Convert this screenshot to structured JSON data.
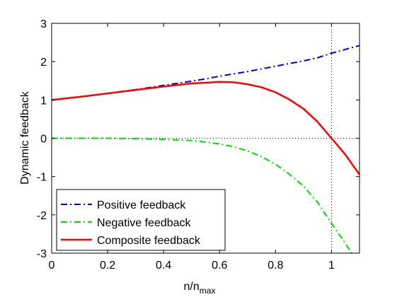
{
  "chart_data": {
    "type": "line",
    "title": "",
    "xlabel": "n/n",
    "xlabel_sub": "max",
    "ylabel": "Dynamic feedback",
    "xlim": [
      0,
      1.1
    ],
    "ylim": [
      -3,
      3
    ],
    "xticks": [
      0,
      0.2,
      0.4,
      0.6,
      0.8,
      1
    ],
    "xtick_labels": [
      "0",
      "0.2",
      "0.4",
      "0.6",
      "0.8",
      "1"
    ],
    "yticks": [
      -3,
      -2,
      -1,
      0,
      1,
      2,
      3
    ],
    "ytick_labels": [
      "-3",
      "-2",
      "-1",
      "0",
      "1",
      "2",
      "3"
    ],
    "grid": false,
    "legend_position": "bottom-left",
    "reference_lines": {
      "vertical_x": 1,
      "horizontal_y": 0,
      "style": "dotted",
      "color": "#000000"
    },
    "x": [
      0,
      0.1,
      0.2,
      0.3,
      0.4,
      0.5,
      0.55,
      0.6,
      0.65,
      0.7,
      0.75,
      0.8,
      0.85,
      0.9,
      0.95,
      1.0,
      1.05,
      1.1
    ],
    "series": [
      {
        "name": "Positive feedback",
        "color": "#0000cc",
        "style": "dashdot",
        "values": [
          1.0,
          1.08,
          1.17,
          1.27,
          1.38,
          1.49,
          1.55,
          1.62,
          1.68,
          1.74,
          1.81,
          1.88,
          1.95,
          2.02,
          2.1,
          2.22,
          2.32,
          2.42
        ]
      },
      {
        "name": "Negative feedback",
        "color": "#00dd00",
        "style": "dashdot",
        "values": [
          0.0,
          0.0,
          0.0,
          -0.01,
          -0.03,
          -0.06,
          -0.1,
          -0.15,
          -0.22,
          -0.33,
          -0.48,
          -0.68,
          -0.94,
          -1.25,
          -1.67,
          -2.22,
          -2.75,
          -3.3
        ]
      },
      {
        "name": "Composite feedback",
        "color": "#ff0000",
        "style": "solid",
        "values": [
          1.0,
          1.08,
          1.17,
          1.26,
          1.35,
          1.43,
          1.45,
          1.47,
          1.46,
          1.41,
          1.33,
          1.2,
          1.01,
          0.77,
          0.43,
          0.0,
          -0.43,
          -0.95
        ]
      }
    ]
  }
}
